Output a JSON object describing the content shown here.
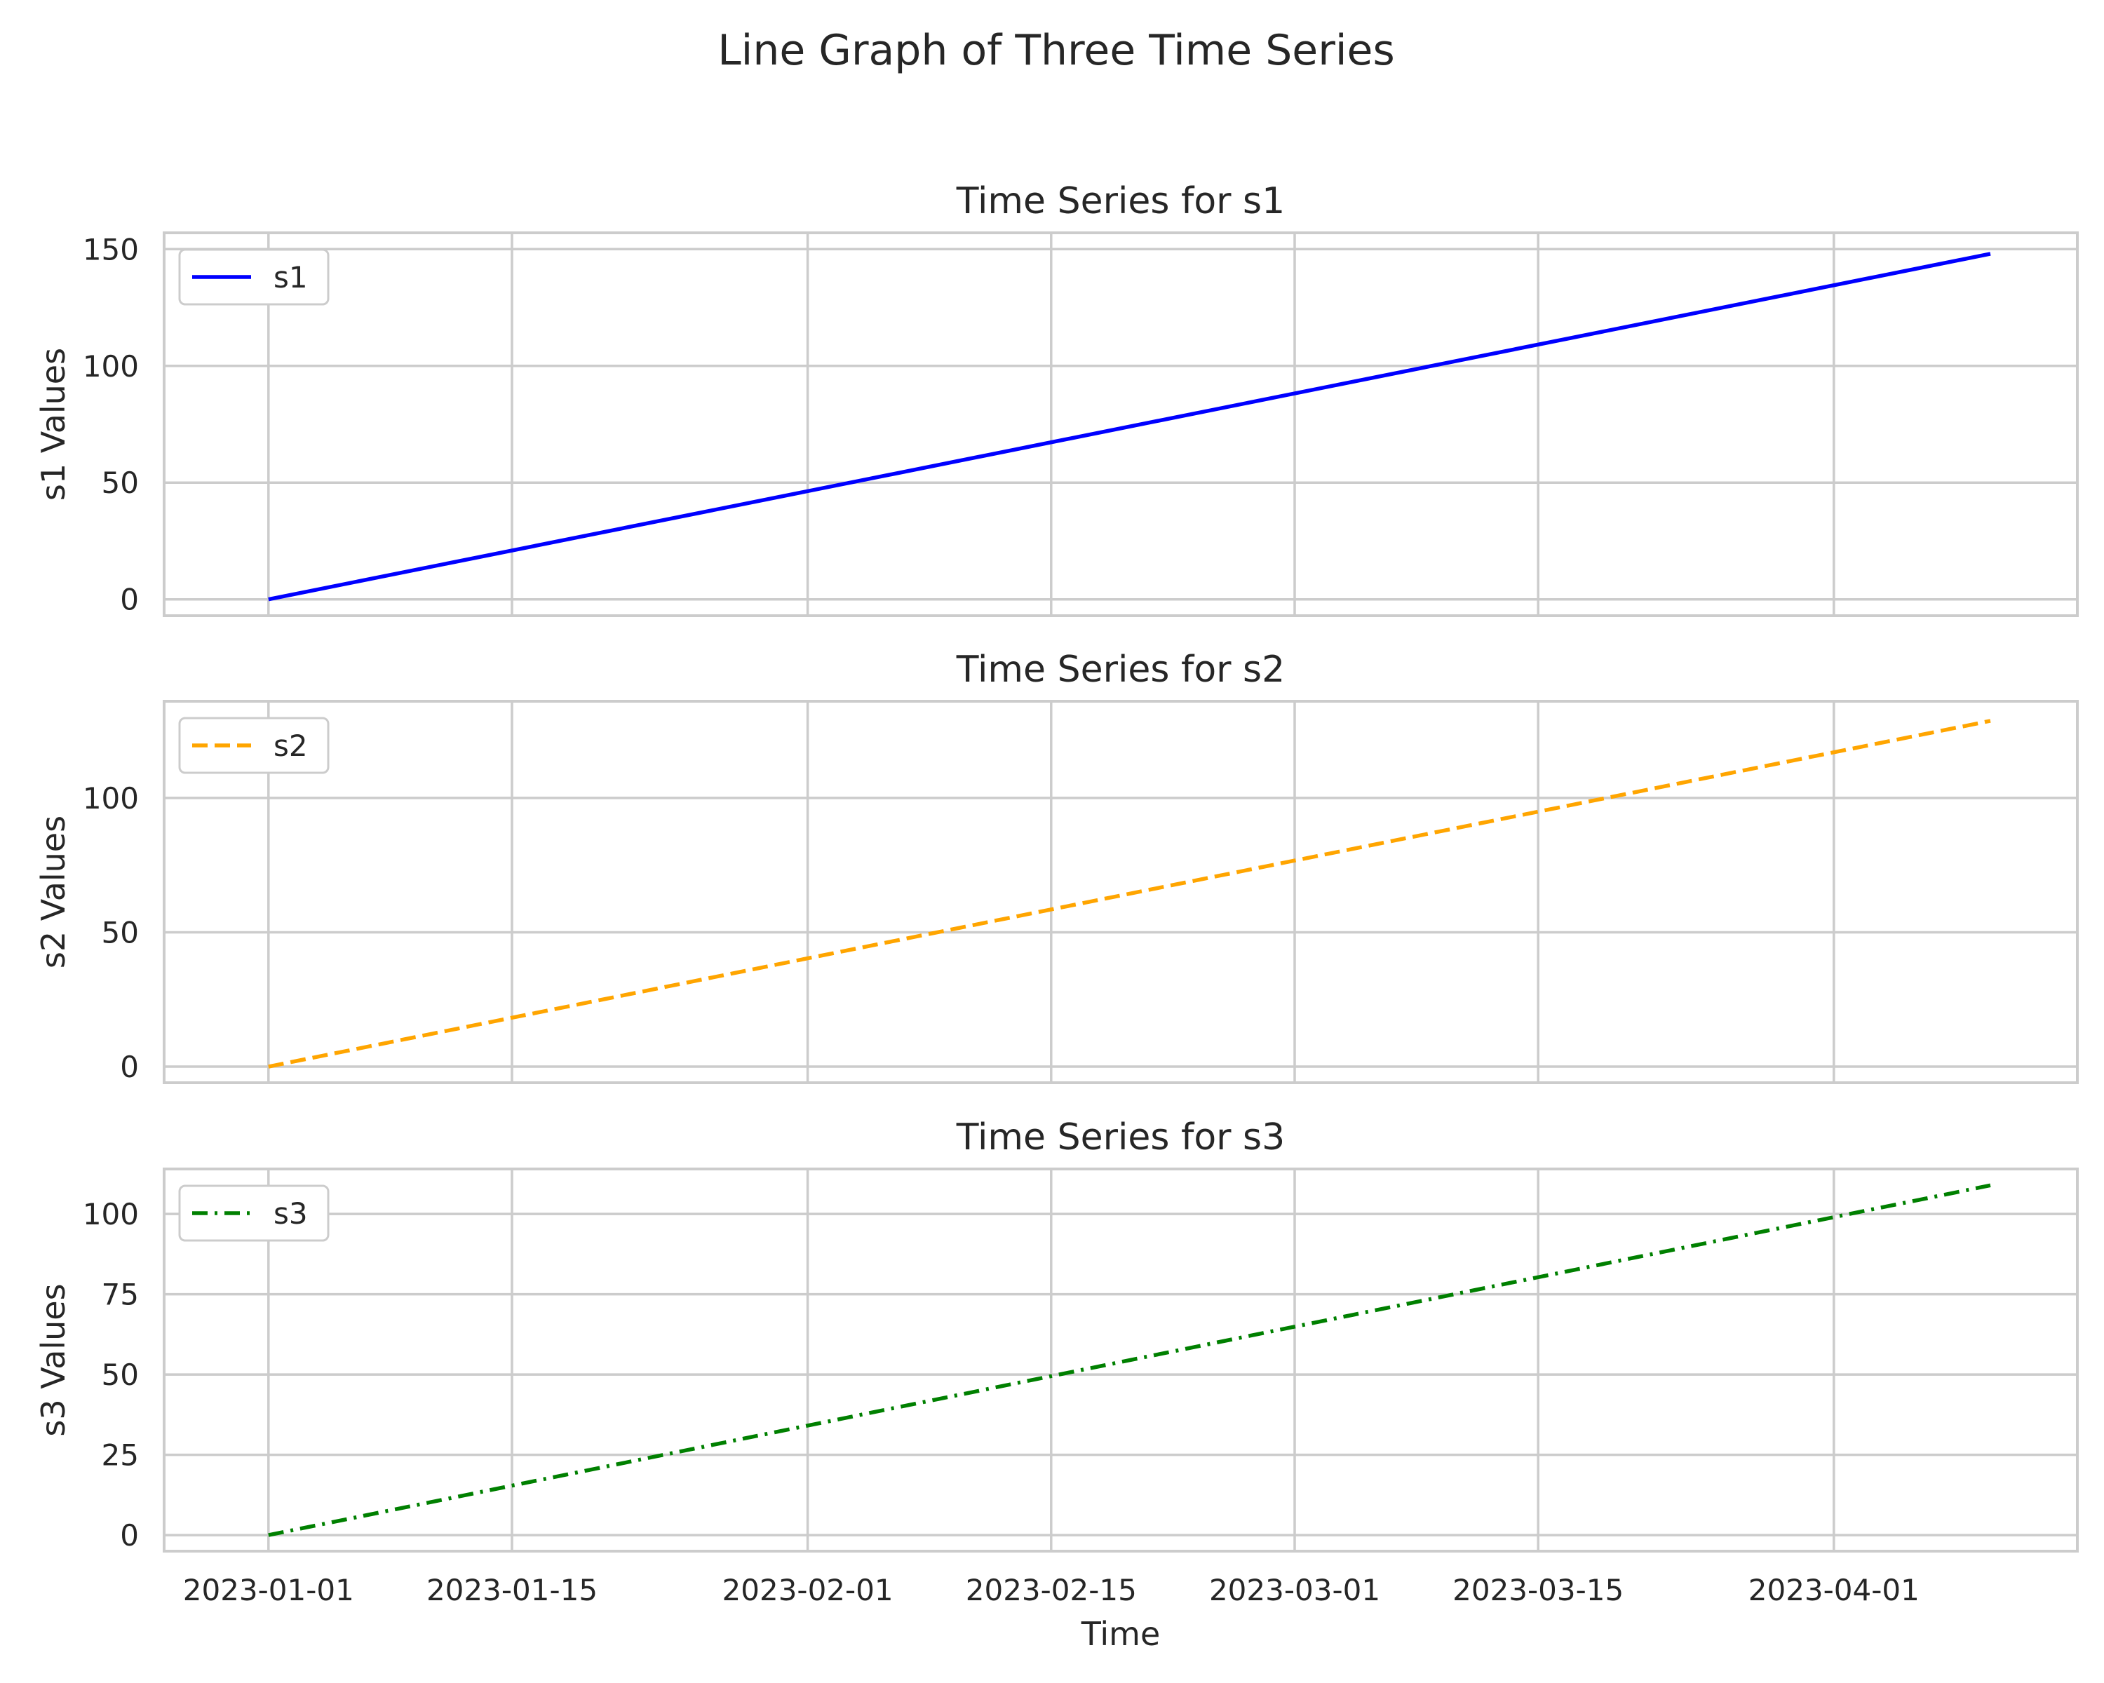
{
  "figure": {
    "title": "Line Graph of Three Time Series"
  },
  "chart_data": [
    {
      "type": "line",
      "title": "Time Series for s1",
      "xlabel": "",
      "ylabel": "s1 Values",
      "xlim": [
        "2022-12-26",
        "2023-04-15"
      ],
      "ylim": [
        -7,
        157
      ],
      "yticks": [
        0,
        50,
        100,
        150
      ],
      "xticks": [
        "2023-01-01",
        "2023-01-15",
        "2023-02-01",
        "2023-02-15",
        "2023-03-01",
        "2023-03-15",
        "2023-04-01"
      ],
      "show_xticklabels": false,
      "grid": true,
      "legend_position": "upper left",
      "series": [
        {
          "name": "s1",
          "color": "#0000ff",
          "style": "solid",
          "x": [
            "2023-01-01",
            "2023-04-10"
          ],
          "y": [
            0,
            148
          ]
        }
      ]
    },
    {
      "type": "line",
      "title": "Time Series for s2",
      "xlabel": "",
      "ylabel": "s2 Values",
      "xlim": [
        "2022-12-26",
        "2023-04-15"
      ],
      "ylim": [
        -6,
        136
      ],
      "yticks": [
        0,
        50,
        100
      ],
      "xticks": [
        "2023-01-01",
        "2023-01-15",
        "2023-02-01",
        "2023-02-15",
        "2023-03-01",
        "2023-03-15",
        "2023-04-01"
      ],
      "show_xticklabels": false,
      "grid": true,
      "legend_position": "upper left",
      "series": [
        {
          "name": "s2",
          "color": "#ffa500",
          "style": "dashed",
          "x": [
            "2023-01-01",
            "2023-04-10"
          ],
          "y": [
            0,
            128.7
          ]
        }
      ]
    },
    {
      "type": "line",
      "title": "Time Series for s3",
      "xlabel": "Time",
      "ylabel": "s3 Values",
      "xlim": [
        "2022-12-26",
        "2023-04-15"
      ],
      "ylim": [
        -5,
        114
      ],
      "yticks": [
        0,
        25,
        50,
        75,
        100
      ],
      "xticks": [
        "2023-01-01",
        "2023-01-15",
        "2023-02-01",
        "2023-02-15",
        "2023-03-01",
        "2023-03-15",
        "2023-04-01"
      ],
      "show_xticklabels": true,
      "grid": true,
      "legend_position": "upper left",
      "series": [
        {
          "name": "s3",
          "color": "#008000",
          "style": "dashdot",
          "x": [
            "2023-01-01",
            "2023-04-10"
          ],
          "y": [
            0,
            108.9
          ]
        }
      ]
    }
  ]
}
